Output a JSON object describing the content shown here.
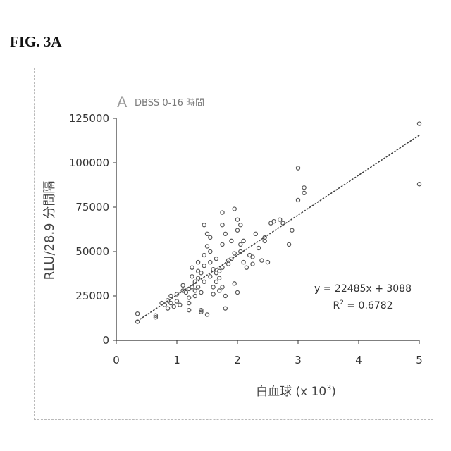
{
  "figure_label": "FIG. 3A",
  "chart_data": {
    "type": "scatter",
    "panel_letter": "A",
    "title": "DBSS 0-16 時間",
    "xlabel": "白血球 (x 10",
    "xlabel_exponent": "3",
    "xlabel_close": ")",
    "ylabel": "RLU/28.9 分間隔",
    "xlim": [
      0,
      5
    ],
    "ylim": [
      0,
      125000
    ],
    "x_ticks": [
      0,
      1,
      2,
      3,
      4,
      5
    ],
    "y_ticks": [
      0,
      25000,
      50000,
      75000,
      100000,
      125000
    ],
    "x_tick_labels": [
      "0",
      "1",
      "2",
      "3",
      "4",
      "5"
    ],
    "y_tick_labels": [
      "0",
      "25000",
      "50000",
      "75000",
      "100000",
      "125000"
    ],
    "trendline": {
      "slope": 22485,
      "intercept": 3088,
      "x_range": [
        0.35,
        5.0
      ],
      "style": "dotted"
    },
    "annotations": {
      "equation": "y = 22485x + 3088",
      "r_squared_label": "R",
      "r_squared_exp": "2",
      "r_squared_value": " = 0.6782"
    },
    "grid": false,
    "marker_color": "#555555",
    "series": [
      {
        "points": [
          [
            0.35,
            15000
          ],
          [
            0.35,
            10500
          ],
          [
            0.65,
            13000
          ],
          [
            0.65,
            14000
          ],
          [
            0.75,
            21000
          ],
          [
            0.8,
            20000
          ],
          [
            0.85,
            18000
          ],
          [
            0.85,
            22500
          ],
          [
            0.9,
            25000
          ],
          [
            0.9,
            21000
          ],
          [
            0.95,
            19000
          ],
          [
            1.0,
            26000
          ],
          [
            1.0,
            22000
          ],
          [
            1.05,
            20000
          ],
          [
            1.1,
            31000
          ],
          [
            1.1,
            28000
          ],
          [
            1.15,
            27000
          ],
          [
            1.2,
            29000
          ],
          [
            1.2,
            24000
          ],
          [
            1.2,
            17000
          ],
          [
            1.2,
            21000
          ],
          [
            1.25,
            36000
          ],
          [
            1.25,
            41000
          ],
          [
            1.25,
            30000
          ],
          [
            1.3,
            33000
          ],
          [
            1.3,
            28000
          ],
          [
            1.3,
            25000
          ],
          [
            1.35,
            39000
          ],
          [
            1.35,
            44000
          ],
          [
            1.35,
            35000
          ],
          [
            1.35,
            30000
          ],
          [
            1.4,
            17000
          ],
          [
            1.4,
            16000
          ],
          [
            1.4,
            38000
          ],
          [
            1.4,
            27000
          ],
          [
            1.45,
            65000
          ],
          [
            1.45,
            48000
          ],
          [
            1.45,
            42000
          ],
          [
            1.45,
            33000
          ],
          [
            1.5,
            60000
          ],
          [
            1.5,
            53000
          ],
          [
            1.5,
            14500
          ],
          [
            1.55,
            58000
          ],
          [
            1.55,
            50000
          ],
          [
            1.55,
            44000
          ],
          [
            1.55,
            36000
          ],
          [
            1.6,
            40000
          ],
          [
            1.6,
            30000
          ],
          [
            1.6,
            26000
          ],
          [
            1.65,
            46000
          ],
          [
            1.65,
            38000
          ],
          [
            1.65,
            33000
          ],
          [
            1.7,
            39000
          ],
          [
            1.7,
            35000
          ],
          [
            1.7,
            28000
          ],
          [
            1.75,
            72000
          ],
          [
            1.75,
            65000
          ],
          [
            1.75,
            54000
          ],
          [
            1.75,
            41000
          ],
          [
            1.75,
            30000
          ],
          [
            1.8,
            25000
          ],
          [
            1.8,
            18000
          ],
          [
            1.8,
            60000
          ],
          [
            1.85,
            45000
          ],
          [
            1.85,
            43000
          ],
          [
            1.9,
            56000
          ],
          [
            1.9,
            46000
          ],
          [
            1.95,
            74000
          ],
          [
            1.95,
            49000
          ],
          [
            1.95,
            32000
          ],
          [
            2.0,
            68000
          ],
          [
            2.0,
            62000
          ],
          [
            2.0,
            27000
          ],
          [
            2.05,
            65000
          ],
          [
            2.05,
            50000
          ],
          [
            2.05,
            54000
          ],
          [
            2.1,
            56000
          ],
          [
            2.1,
            44000
          ],
          [
            2.15,
            41000
          ],
          [
            2.2,
            48000
          ],
          [
            2.25,
            47000
          ],
          [
            2.25,
            43000
          ],
          [
            2.3,
            60000
          ],
          [
            2.35,
            52000
          ],
          [
            2.4,
            45000
          ],
          [
            2.45,
            56000
          ],
          [
            2.45,
            58000
          ],
          [
            2.5,
            44000
          ],
          [
            2.55,
            66000
          ],
          [
            2.6,
            67000
          ],
          [
            2.7,
            68000
          ],
          [
            2.75,
            66000
          ],
          [
            2.85,
            54000
          ],
          [
            2.9,
            62000
          ],
          [
            3.0,
            97000
          ],
          [
            3.0,
            79000
          ],
          [
            3.1,
            83000
          ],
          [
            3.1,
            86000
          ],
          [
            5.0,
            122000
          ],
          [
            5.0,
            88000
          ]
        ]
      }
    ]
  }
}
